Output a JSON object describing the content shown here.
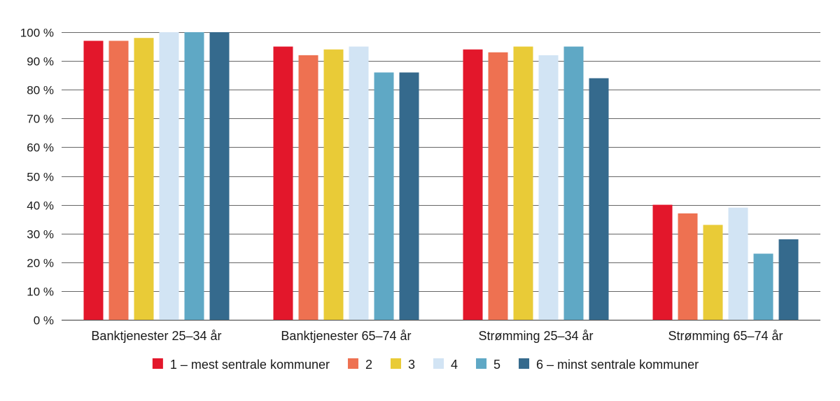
{
  "chart_data": {
    "type": "bar",
    "title": "",
    "xlabel": "",
    "ylabel": "",
    "ylim": [
      0,
      100
    ],
    "yticks": [
      0,
      10,
      20,
      30,
      40,
      50,
      60,
      70,
      80,
      90,
      100
    ],
    "ytick_labels": [
      "0 %",
      "10 %",
      "20 %",
      "30 %",
      "40 %",
      "50 %",
      "60 %",
      "70 %",
      "80 %",
      "90 %",
      "100 %"
    ],
    "grid": true,
    "legend_position": "bottom",
    "categories": [
      "Banktjenester 25–34 år",
      "Banktjenester 65–74 år",
      "Strømming 25–34 år",
      "Strømming 65–74 år"
    ],
    "series": [
      {
        "name": "1 – mest sentrale kommuner",
        "color": "#e3172b",
        "values": [
          97,
          95,
          94,
          40
        ]
      },
      {
        "name": "2",
        "color": "#ee7151",
        "values": [
          97,
          92,
          93,
          37
        ]
      },
      {
        "name": "3",
        "color": "#e9cb37",
        "values": [
          98,
          94,
          95,
          33
        ]
      },
      {
        "name": "4",
        "color": "#d2e4f4",
        "values": [
          100,
          95,
          92,
          39
        ]
      },
      {
        "name": "5",
        "color": "#5fa8c5",
        "values": [
          100,
          86,
          95,
          23
        ]
      },
      {
        "name": "6 – minst sentrale kommuner",
        "color": "#356a8d",
        "values": [
          100,
          86,
          84,
          28
        ]
      }
    ]
  }
}
